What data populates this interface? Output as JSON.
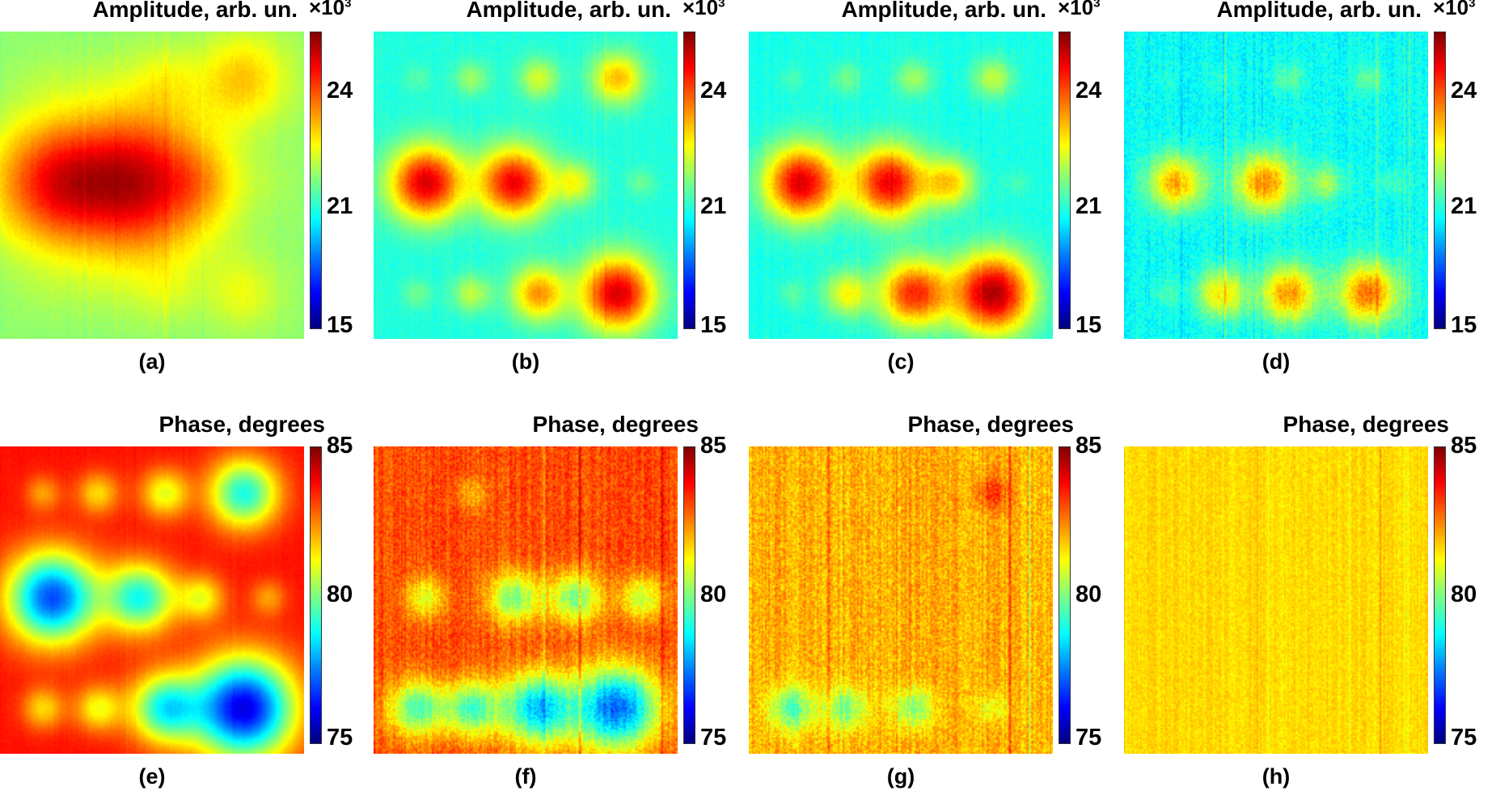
{
  "chart_data": {
    "type": "heatmap",
    "colormap": "jet",
    "panels": [
      {
        "label": "(a)",
        "title": "Amplitude, arb. un.",
        "multiplier": "×10",
        "multiplier_exp": "3",
        "range": [
          15,
          26.3
        ],
        "ticks": [
          24,
          21,
          15
        ],
        "background": 20.8,
        "blur": 2.4,
        "noise": 0.15,
        "spots": [
          [
            21,
            21,
            21.6,
            22.6
          ],
          [
            24.2,
            25.2,
            21.5,
            21
          ],
          [
            21,
            21,
            21.4,
            21.8
          ]
        ]
      },
      {
        "label": "(b)",
        "title": "Amplitude, arb. un.",
        "multiplier": "×10",
        "multiplier_exp": "3",
        "range": [
          15,
          26.3
        ],
        "ticks": [
          24,
          21,
          15
        ],
        "background": 19.6,
        "blur": 1,
        "noise": 0.2,
        "spots": [
          [
            20.2,
            21,
            21.6,
            22.8
          ],
          [
            25.3,
            25,
            21.8,
            20.4
          ],
          [
            20.5,
            21.4,
            23.2,
            25.3
          ]
        ]
      },
      {
        "label": "(c)",
        "title": "Amplitude, arb. un.",
        "multiplier": "×10",
        "multiplier_exp": "3",
        "range": [
          15,
          26.3
        ],
        "ticks": [
          24,
          21,
          15
        ],
        "background": 19.5,
        "blur": 1,
        "noise": 0.25,
        "spots": [
          [
            20,
            20.5,
            21,
            21.4
          ],
          [
            25.2,
            25,
            22.5,
            20
          ],
          [
            20.2,
            22,
            24.4,
            25.8
          ]
        ]
      },
      {
        "label": "(d)",
        "title": "Amplitude, arb. un.",
        "multiplier": "×10",
        "multiplier_exp": "3",
        "range": [
          15,
          26.3
        ],
        "ticks": [
          24,
          21,
          15
        ],
        "background": 19.3,
        "blur": 1,
        "noise": 0.5,
        "spots": [
          [
            19.6,
            19.8,
            20.3,
            20.3
          ],
          [
            23,
            23.4,
            21,
            20
          ],
          [
            20,
            22.3,
            23.2,
            23.6
          ]
        ]
      },
      {
        "label": "(e)",
        "title": "Phase, degrees",
        "range": [
          75,
          85
        ],
        "ticks": [
          85,
          80,
          75
        ],
        "background": 83.6,
        "blur": 1,
        "noise": 0.1,
        "spots": [
          [
            82.2,
            81.6,
            81,
            79
          ],
          [
            77,
            79,
            81.2,
            82.2
          ],
          [
            81.6,
            81.2,
            79,
            76
          ]
        ]
      },
      {
        "label": "(f)",
        "title": "Phase, degrees",
        "range": [
          75,
          85
        ],
        "ticks": [
          85,
          80,
          75
        ],
        "background": 83,
        "blur": 1,
        "noise": 0.6,
        "spots": [
          [
            83,
            82,
            83,
            83
          ],
          [
            81,
            80,
            80,
            80.6
          ],
          [
            79.6,
            79.6,
            78.2,
            77.2
          ]
        ]
      },
      {
        "label": "(g)",
        "title": "Phase, degrees",
        "range": [
          75,
          85
        ],
        "ticks": [
          85,
          80,
          75
        ],
        "background": 82,
        "blur": 1,
        "noise": 0.7,
        "spots": [
          [
            82,
            82,
            82,
            83.2
          ],
          [
            82,
            82,
            82,
            82
          ],
          [
            79.6,
            80,
            80,
            81
          ]
        ]
      },
      {
        "label": "(h)",
        "title": "Phase, degrees",
        "range": [
          75,
          85
        ],
        "ticks": [
          85,
          80,
          75
        ],
        "background": 81.6,
        "blur": 1,
        "noise": 0.35,
        "spots": [
          [
            81.6,
            81.6,
            81.6,
            81.6
          ],
          [
            81.6,
            81.6,
            81.6,
            81.6
          ],
          [
            81.6,
            81.6,
            81.6,
            81.6
          ]
        ]
      }
    ]
  }
}
